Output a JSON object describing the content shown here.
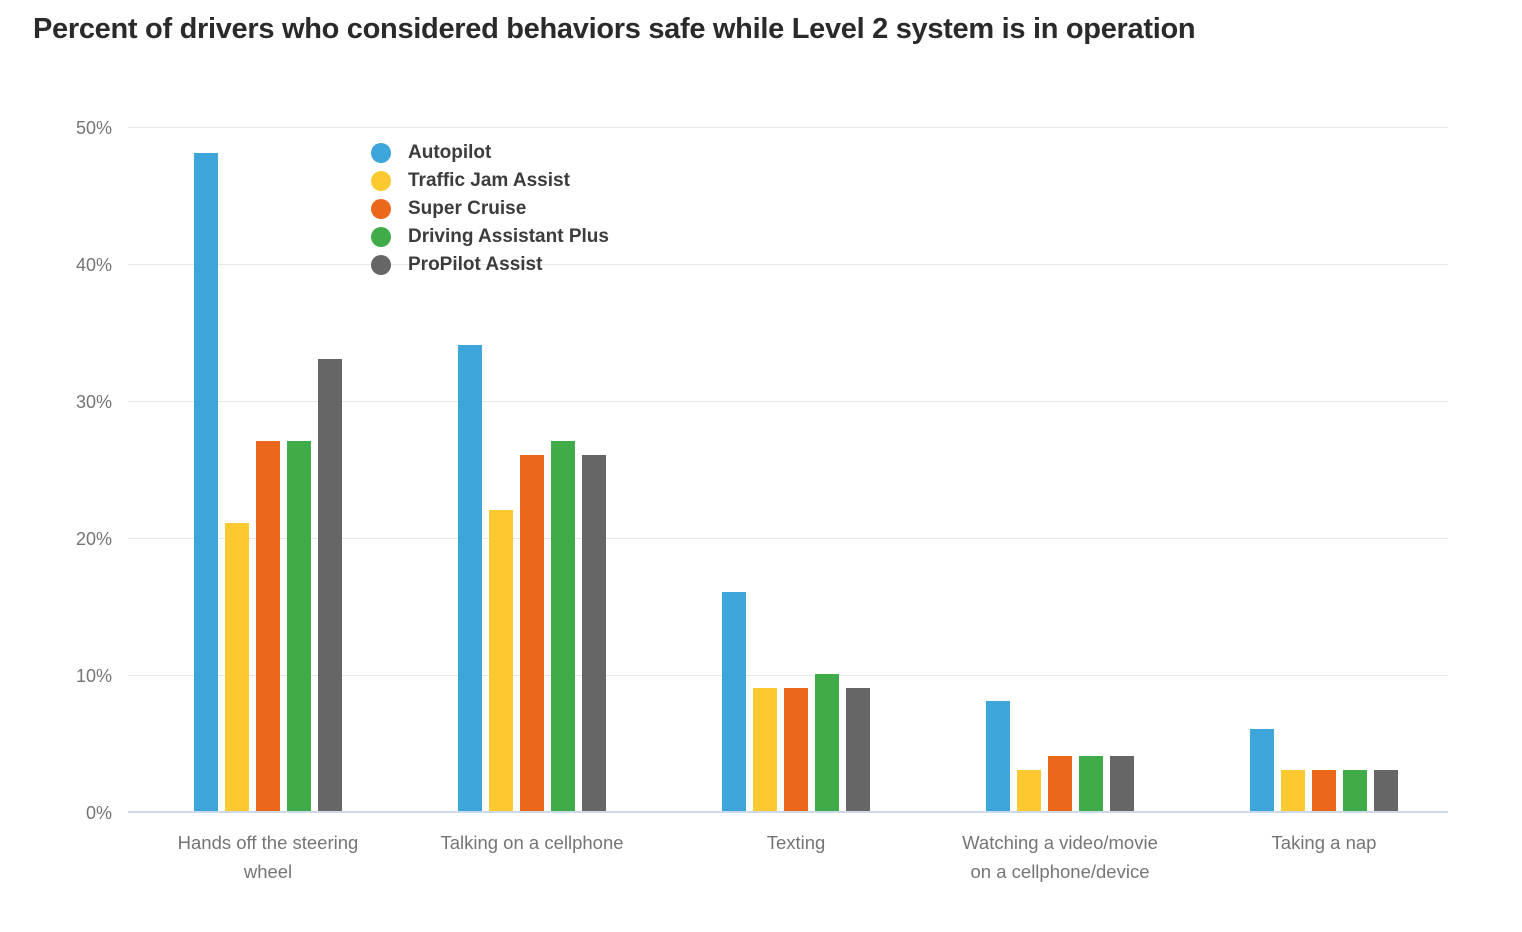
{
  "chart_data": {
    "type": "bar",
    "title": "Percent of drivers who considered behaviors safe while Level 2 system is in operation",
    "categories": [
      "Hands off the steering wheel",
      "Talking on a cellphone",
      "Texting",
      "Watching a video/movie on a cellphone/device",
      "Taking a nap"
    ],
    "category_labels_lines": [
      [
        "Hands off the steering",
        "wheel"
      ],
      [
        "Talking on a cellphone"
      ],
      [
        "Texting"
      ],
      [
        "Watching a video/movie",
        "on a cellphone/device"
      ],
      [
        "Taking a nap"
      ]
    ],
    "series": [
      {
        "name": "Autopilot",
        "color": "#3ea5db",
        "values": [
          48,
          34,
          16,
          8,
          6
        ]
      },
      {
        "name": "Traffic Jam Assist",
        "color": "#fdc930",
        "values": [
          21,
          22,
          9,
          3,
          3
        ]
      },
      {
        "name": "Super Cruise",
        "color": "#eb671c",
        "values": [
          27,
          26,
          9,
          4,
          3
        ]
      },
      {
        "name": "Driving Assistant Plus",
        "color": "#40ac49",
        "values": [
          27,
          27,
          10,
          4,
          3
        ]
      },
      {
        "name": "ProPilot Assist",
        "color": "#666666",
        "values": [
          33,
          26,
          9,
          4,
          3
        ]
      }
    ],
    "yticks": [
      0,
      10,
      20,
      30,
      40,
      50
    ],
    "ytick_labels": [
      "0%",
      "10%",
      "20%",
      "30%",
      "40%",
      "50%"
    ],
    "ylim": [
      0,
      50
    ],
    "xlabel": "",
    "ylabel": "",
    "grid": true,
    "legend_position": "top-left-inside"
  }
}
